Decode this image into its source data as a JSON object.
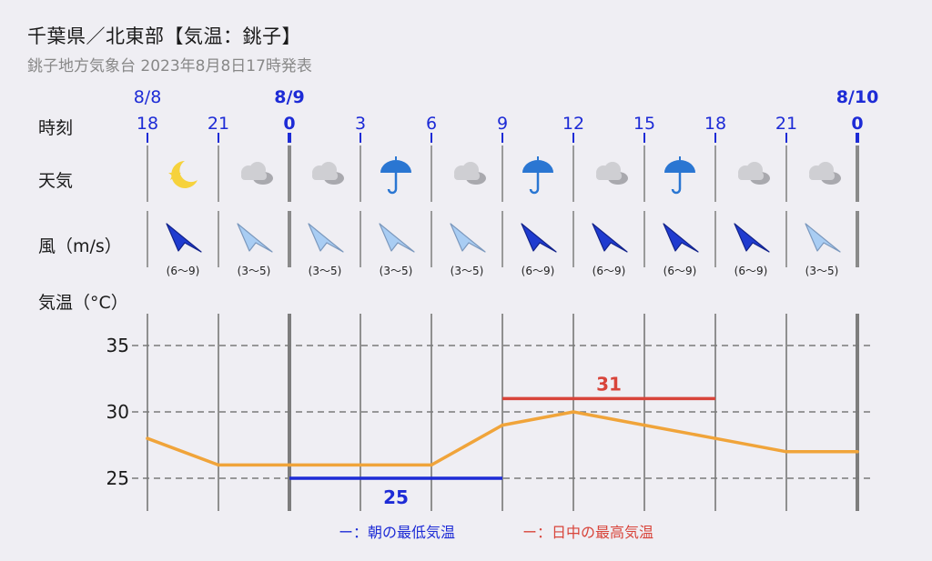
{
  "header": {
    "title": "千葉県／北東部【気温：銚子】",
    "subtitle": "銚子地方気象台 2023年8月8日17時発表"
  },
  "rows": {
    "time_label": "時刻",
    "weather_label": "天気",
    "wind_label": "風（m/s）",
    "temp_label": "気温（°C）"
  },
  "colors": {
    "date_blue": "#1d2bd6",
    "line_orange": "#f0a43a",
    "low_blue": "#1d2bd6",
    "high_red": "#d8443a",
    "arrow_dark": "#1f3bcf",
    "arrow_light": "#a9cdf3"
  },
  "timeline": {
    "dates": [
      {
        "label": "8/8",
        "bold": false,
        "col": 0
      },
      {
        "label": "8/9",
        "bold": true,
        "col": 2
      },
      {
        "label": "8/10",
        "bold": true,
        "col": 10
      }
    ],
    "hours": [
      "18",
      "21",
      "0",
      "3",
      "6",
      "9",
      "12",
      "15",
      "18",
      "21",
      "0"
    ],
    "weather_icons": [
      "moon-star",
      "cloudy",
      "cloudy",
      "umbrella",
      "cloudy",
      "umbrella",
      "cloudy",
      "umbrella",
      "cloudy",
      "cloudy"
    ],
    "wind": [
      {
        "range": "(6〜9)",
        "strength": "strong"
      },
      {
        "range": "(3〜5)",
        "strength": "weak"
      },
      {
        "range": "(3〜5)",
        "strength": "weak"
      },
      {
        "range": "(3〜5)",
        "strength": "weak"
      },
      {
        "range": "(3〜5)",
        "strength": "weak"
      },
      {
        "range": "(6〜9)",
        "strength": "strong"
      },
      {
        "range": "(6〜9)",
        "strength": "strong"
      },
      {
        "range": "(6〜9)",
        "strength": "strong"
      },
      {
        "range": "(6〜9)",
        "strength": "strong"
      },
      {
        "range": "(3〜5)",
        "strength": "weak"
      }
    ]
  },
  "chart_data": {
    "type": "line",
    "x": [
      "18",
      "21",
      "0",
      "3",
      "6",
      "9",
      "12",
      "15",
      "18",
      "21",
      "0"
    ],
    "series": [
      {
        "values": [
          28,
          26,
          26,
          26,
          26,
          29,
          30,
          29,
          28,
          27,
          27
        ]
      }
    ],
    "y_ticks": [
      25,
      30,
      35
    ],
    "ylim": [
      23,
      37
    ],
    "grid": true,
    "annotations": [
      {
        "kind": "min",
        "value": 25,
        "label": "25",
        "from_col": 2,
        "to_col": 5
      },
      {
        "kind": "max",
        "value": 31,
        "label": "31",
        "from_col": 5,
        "to_col": 8
      }
    ]
  },
  "legend": {
    "low": "ー：朝の最低気温",
    "high": "ー：日中の最高気温"
  }
}
